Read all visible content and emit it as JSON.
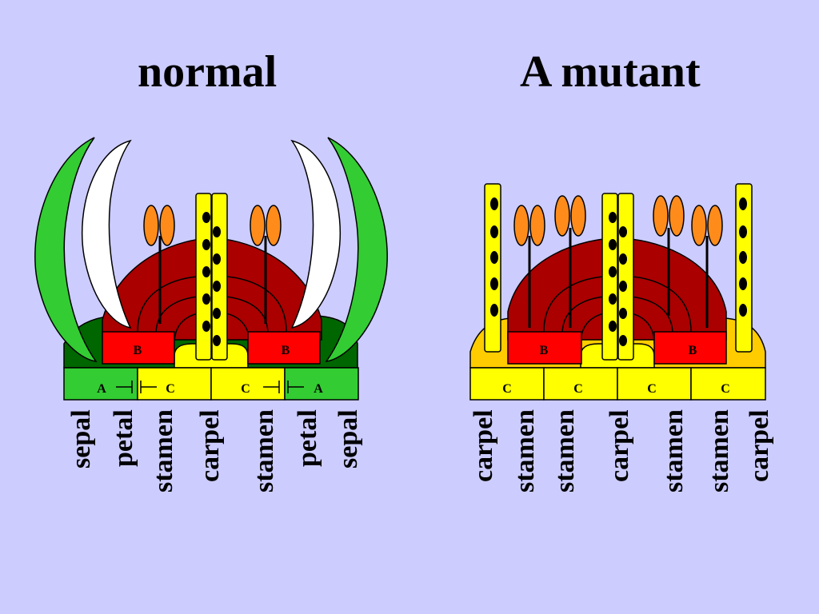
{
  "titles": {
    "normal": "normal",
    "mutant": "A mutant"
  },
  "normal": {
    "organs": [
      "sepal",
      "petal",
      "stamen",
      "carpel",
      "stamen",
      "petal",
      "sepal"
    ],
    "genes": {
      "b_left": "B",
      "b_right": "B",
      "a_left": "A",
      "c_left": "C",
      "c_right": "C",
      "a_right": "A"
    }
  },
  "mutant": {
    "organs": [
      "carpel",
      "stamen",
      "stamen",
      "carpel",
      "stamen",
      "stamen",
      "carpel"
    ],
    "genes": {
      "b_left": "B",
      "b_right": "B",
      "c1": "C",
      "c2": "C",
      "c3": "C",
      "c4": "C"
    }
  },
  "colors": {
    "background": "#ccccff",
    "sepal_green": "#33cc33",
    "dark_green": "#006600",
    "petal_white": "#ffffff",
    "b_dark_red": "#aa0000",
    "b_red": "#ff0000",
    "c_yellow": "#ffff00",
    "c_gold": "#ffcc00",
    "anther_orange": "#ff8c1a"
  }
}
